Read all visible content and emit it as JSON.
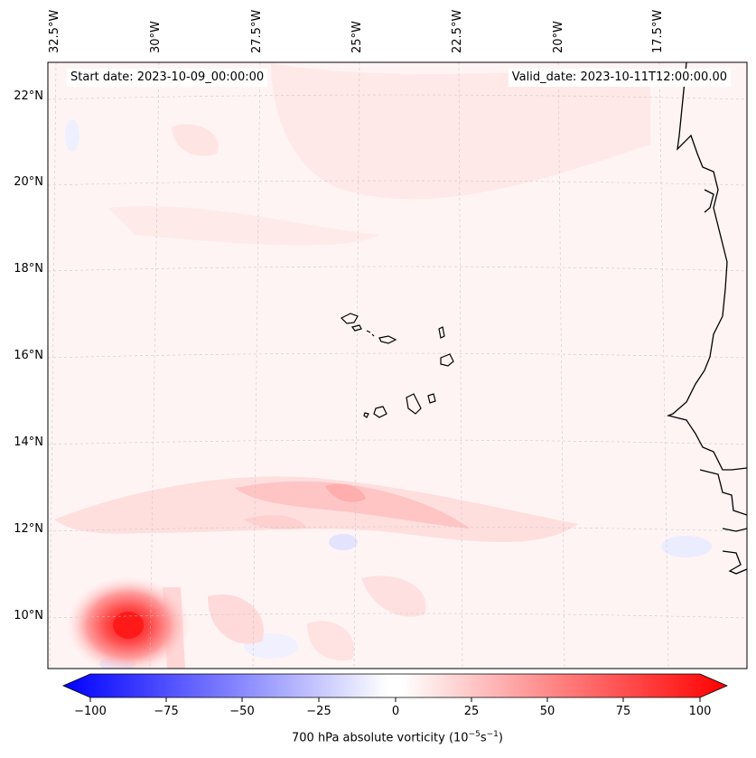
{
  "map": {
    "start_date": "Start date: 2023-10-09_00:00:00",
    "valid_date": "Valid_date: 2023-10-11T12:00:00.00",
    "lon_labels": [
      "32.5°W",
      "30°W",
      "27.5°W",
      "25°W",
      "22.5°W",
      "20°W",
      "17.5°W"
    ],
    "lat_labels": [
      "22°N",
      "20°N",
      "18°N",
      "16°N",
      "14°N",
      "12°N",
      "10°N"
    ],
    "field": "700 hPa absolute vorticity",
    "features": [
      "Cabo Verde islands",
      "West African coastline",
      "vorticity maximum near 30°W 10°N"
    ]
  },
  "colorbar": {
    "ticks": [
      "−100",
      "−75",
      "−50",
      "−25",
      "0",
      "25",
      "50",
      "75",
      "100"
    ],
    "min": -100,
    "max": 100,
    "label_prefix": "700 hPa absolute vorticity (10",
    "label_exp1": "−5",
    "label_mid": "s",
    "label_exp2": "−1",
    "label_suffix": ")",
    "colors": {
      "negative": "#0000ff",
      "zero": "#ffffff",
      "positive": "#ff0000"
    }
  }
}
